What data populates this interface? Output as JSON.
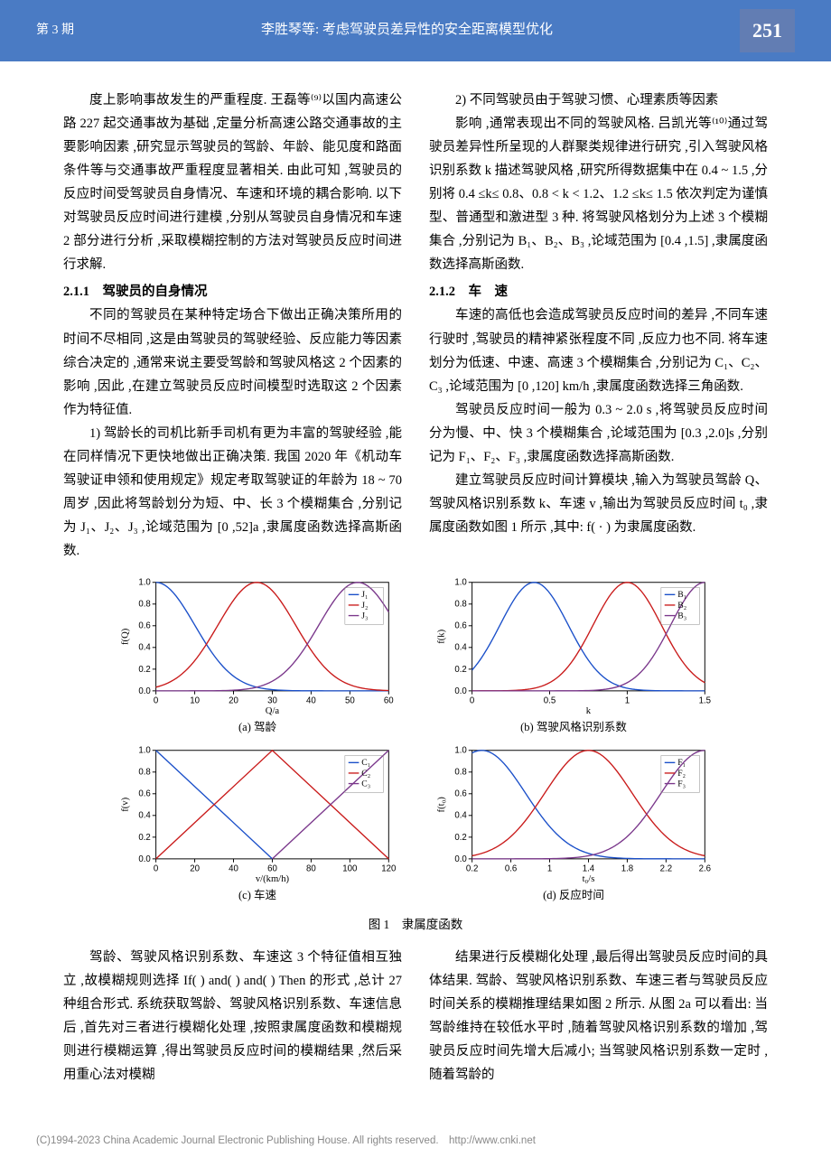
{
  "header": {
    "issue": "第 3 期",
    "title": "李胜琴等: 考虑驾驶员差异性的安全距离模型优化",
    "page": "251"
  },
  "body": {
    "p1": "度上影响事故发生的严重程度. 王磊等⁽⁹⁾以国内高速公路 227 起交通事故为基础 ,定量分析高速公路交通事故的主要影响因素 ,研究显示驾驶员的驾龄、年龄、能见度和路面条件等与交通事故严重程度显著相关. 由此可知 ,驾驶员的反应时间受驾驶员自身情况、车速和环境的耦合影响. 以下对驾驶员反应时间进行建模 ,分别从驾驶员自身情况和车速 2 部分进行分析 ,采取模糊控制的方法对驾驶员反应时间进行求解.",
    "h211": "2.1.1　驾驶员的自身情况",
    "p2": "不同的驾驶员在某种特定场合下做出正确决策所用的时间不尽相同 ,这是由驾驶员的驾驶经验、反应能力等因素综合决定的 ,通常来说主要受驾龄和驾驶风格这 2 个因素的影响 ,因此 ,在建立驾驶员反应时间模型时选取这 2 个因素作为特征值.",
    "p3": "1) 驾龄长的司机比新手司机有更为丰富的驾驶经验 ,能在同样情况下更快地做出正确决策. 我国 2020 年《机动车驾驶证申领和使用规定》规定考取驾驶证的年龄为 18 ~ 70 周岁 ,因此将驾龄划分为短、中、长 3 个模糊集合 ,分别记为 J₁、J₂、J₃ ,论域范围为 [0 ,52]a ,隶属度函数选择高斯函数.",
    "p4": "2) 不同驾驶员由于驾驶习惯、心理素质等因素",
    "p5": "影响 ,通常表现出不同的驾驶风格. 吕凯光等⁽¹⁰⁾通过驾驶员差异性所呈现的人群聚类规律进行研究 ,引入驾驶风格识别系数 k 描述驾驶风格 ,研究所得数据集中在 0.4 ~ 1.5 ,分别将 0.4 ≤k≤ 0.8、0.8 < k < 1.2、1.2 ≤k≤ 1.5 依次判定为谨慎型、普通型和激进型 3 种. 将驾驶风格划分为上述 3 个模糊集合 ,分别记为 B₁、B₂、B₃ ,论域范围为 [0.4 ,1.5] ,隶属度函数选择高斯函数.",
    "h212": "2.1.2　车　速",
    "p6": "车速的高低也会造成驾驶员反应时间的差异 ,不同车速行驶时 ,驾驶员的精神紧张程度不同 ,反应力也不同. 将车速划分为低速、中速、高速 3 个模糊集合 ,分别记为 C₁、C₂、C₃ ,论域范围为 [0 ,120] km/h ,隶属度函数选择三角函数.",
    "p7": "驾驶员反应时间一般为 0.3 ~ 2.0 s ,将驾驶员反应时间分为慢、中、快 3 个模糊集合 ,论域范围为 [0.3 ,2.0]s ,分别记为 F₁、F₂、F₃ ,隶属度函数选择高斯函数.",
    "p8": "建立驾驶员反应时间计算模块 ,输入为驾驶员驾龄 Q、驾驶风格识别系数 k、车速 v ,输出为驾驶员反应时间 t₀ ,隶属度函数如图 1 所示 ,其中: f( · ) 为隶属度函数.",
    "p9": "驾龄、驾驶风格识别系数、车速这 3 个特征值相互独立 ,故模糊规则选择 If( ) and( ) and( ) Then 的形式 ,总计 27 种组合形式. 系统获取驾龄、驾驶风格识别系数、车速信息后 ,首先对三者进行模糊化处理 ,按照隶属度函数和模糊规则进行模糊运算 ,得出驾驶员反应时间的模糊结果 ,然后采用重心法对模糊",
    "p10": "结果进行反模糊化处理 ,最后得出驾驶员反应时间的具体结果. 驾龄、驾驶风格识别系数、车速三者与驾驶员反应时间关系的模糊推理结果如图 2 所示. 从图 2a 可以看出: 当驾龄维持在较低水平时 ,随着驾驶风格识别系数的增加 ,驾驶员反应时间先增大后减小; 当驾驶风格识别系数一定时 ,随着驾龄的"
  },
  "figure1": {
    "caption": "图 1　隶属度函数",
    "colors": {
      "c1": "#1a4fc9",
      "c2": "#c91a1a",
      "c3": "#7a378b",
      "axis": "#000000",
      "legend_border": "#999999"
    },
    "axis_font_size": 10,
    "label_font_size": 11,
    "panels": {
      "a": {
        "caption": "(a) 驾龄",
        "xlabel": "Q/a",
        "ylabel": "f(Q)",
        "xlim": [
          0,
          60
        ],
        "xticks": [
          0,
          10,
          20,
          30,
          40,
          50,
          60
        ],
        "ylim": [
          0,
          1.0
        ],
        "yticks": [
          0,
          0.2,
          0.4,
          0.6,
          0.8,
          1.0
        ],
        "type": "gaussian",
        "legend": [
          "J₁",
          "J₂",
          "J₃"
        ],
        "series": [
          {
            "color": "#1a4fc9",
            "mu": 0,
            "sigma": 10
          },
          {
            "color": "#c91a1a",
            "mu": 26,
            "sigma": 10
          },
          {
            "color": "#7a378b",
            "mu": 52,
            "sigma": 10
          }
        ]
      },
      "b": {
        "caption": "(b) 驾驶风格识别系数",
        "xlabel": "k",
        "ylabel": "f(k)",
        "xlim": [
          0,
          1.5
        ],
        "xticks": [
          0,
          0.5,
          1.0,
          1.5
        ],
        "ylim": [
          0,
          1.0
        ],
        "yticks": [
          0,
          0.2,
          0.4,
          0.6,
          0.8,
          1.0
        ],
        "type": "gaussian",
        "legend": [
          "B₁",
          "B₂",
          "B₃"
        ],
        "series": [
          {
            "color": "#1a4fc9",
            "mu": 0.4,
            "sigma": 0.22
          },
          {
            "color": "#c91a1a",
            "mu": 1.0,
            "sigma": 0.22
          },
          {
            "color": "#7a378b",
            "mu": 1.5,
            "sigma": 0.22
          }
        ]
      },
      "c": {
        "caption": "(c) 车速",
        "xlabel": "v/(km/h)",
        "ylabel": "f(v)",
        "xlim": [
          0,
          120
        ],
        "xticks": [
          0,
          20,
          40,
          60,
          80,
          100,
          120
        ],
        "ylim": [
          0,
          1.0
        ],
        "yticks": [
          0,
          0.2,
          0.4,
          0.6,
          0.8,
          1.0
        ],
        "type": "triangle",
        "legend": [
          "C₁",
          "C₂",
          "C₃"
        ],
        "series": [
          {
            "color": "#1a4fc9",
            "pts": [
              [
                0,
                1
              ],
              [
                60,
                0
              ]
            ]
          },
          {
            "color": "#c91a1a",
            "pts": [
              [
                0,
                0
              ],
              [
                60,
                1
              ],
              [
                120,
                0
              ]
            ]
          },
          {
            "color": "#7a378b",
            "pts": [
              [
                60,
                0
              ],
              [
                120,
                1
              ]
            ]
          }
        ]
      },
      "d": {
        "caption": "(d) 反应时间",
        "xlabel": "t₀/s",
        "ylabel": "f(t₀)",
        "xlim": [
          0.2,
          2.6
        ],
        "xticks": [
          0.2,
          0.6,
          1.0,
          1.4,
          1.8,
          2.2,
          2.6
        ],
        "ylim": [
          0,
          1.0
        ],
        "yticks": [
          0,
          0.2,
          0.4,
          0.6,
          0.8,
          1.0
        ],
        "type": "gaussian",
        "legend": [
          "F₁",
          "F₂",
          "F₃"
        ],
        "series": [
          {
            "color": "#1a4fc9",
            "mu": 0.3,
            "sigma": 0.45
          },
          {
            "color": "#c91a1a",
            "mu": 1.4,
            "sigma": 0.45
          },
          {
            "color": "#7a378b",
            "mu": 2.6,
            "sigma": 0.45
          }
        ]
      }
    }
  },
  "footer": "(C)1994-2023 China Academic Journal Electronic Publishing House. All rights reserved.　http://www.cnki.net"
}
